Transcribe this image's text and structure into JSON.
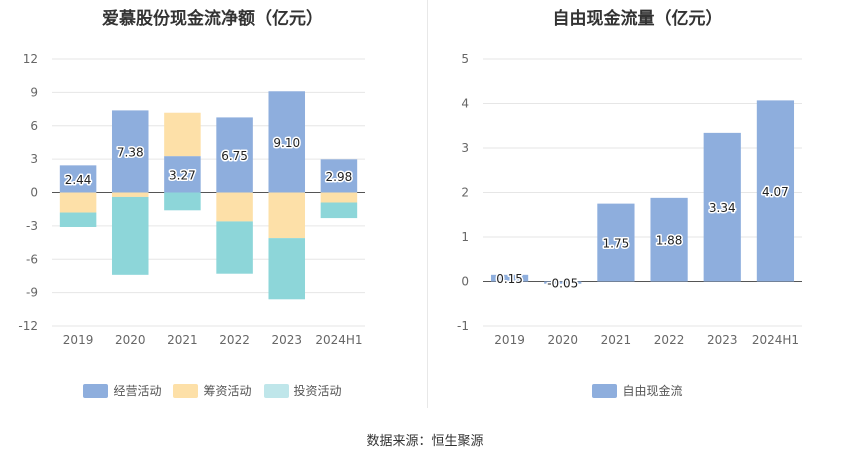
{
  "source_label": "数据来源：恒生聚源",
  "chart_data": [
    {
      "type": "bar",
      "stacked": true,
      "title": "爱慕股份现金流净额（亿元）",
      "categories": [
        "2019",
        "2020",
        "2021",
        "2022",
        "2023",
        "2024H1"
      ],
      "ylim": [
        -12,
        12
      ],
      "yticks": [
        12,
        9,
        6,
        3,
        0,
        -3,
        -6,
        -9,
        -12
      ],
      "grid": true,
      "legend_position": "bottom",
      "series": [
        {
          "name": "经营活动",
          "color": "#8eaedd",
          "values": [
            2.44,
            7.38,
            3.27,
            6.75,
            9.1,
            2.98
          ],
          "labels": [
            "2.44",
            "7.38",
            "3.27",
            "6.75",
            "9.10",
            "2.98"
          ]
        },
        {
          "name": "筹资活动",
          "color": "#fde0a8",
          "values": [
            -1.8,
            -0.4,
            3.9,
            -2.6,
            -4.1,
            -0.9
          ]
        },
        {
          "name": "投资活动",
          "color": "#bfe6ea",
          "bar_color": "#8dd6d9",
          "values": [
            -1.3,
            -7.0,
            -1.6,
            -4.7,
            -5.5,
            -1.4
          ]
        }
      ]
    },
    {
      "type": "bar",
      "title": "自由现金流量（亿元）",
      "categories": [
        "2019",
        "2020",
        "2021",
        "2022",
        "2023",
        "2024H1"
      ],
      "ylim": [
        -1,
        5
      ],
      "yticks": [
        5,
        4,
        3,
        2,
        1,
        0,
        -1
      ],
      "grid": true,
      "legend_position": "bottom",
      "series": [
        {
          "name": "自由现金流",
          "color": "#8eaedd",
          "values": [
            0.15,
            -0.05,
            1.75,
            1.88,
            3.34,
            4.07
          ],
          "labels": [
            "0.15",
            "-0.05",
            "1.75",
            "1.88",
            "3.34",
            "4.07"
          ]
        }
      ]
    }
  ]
}
